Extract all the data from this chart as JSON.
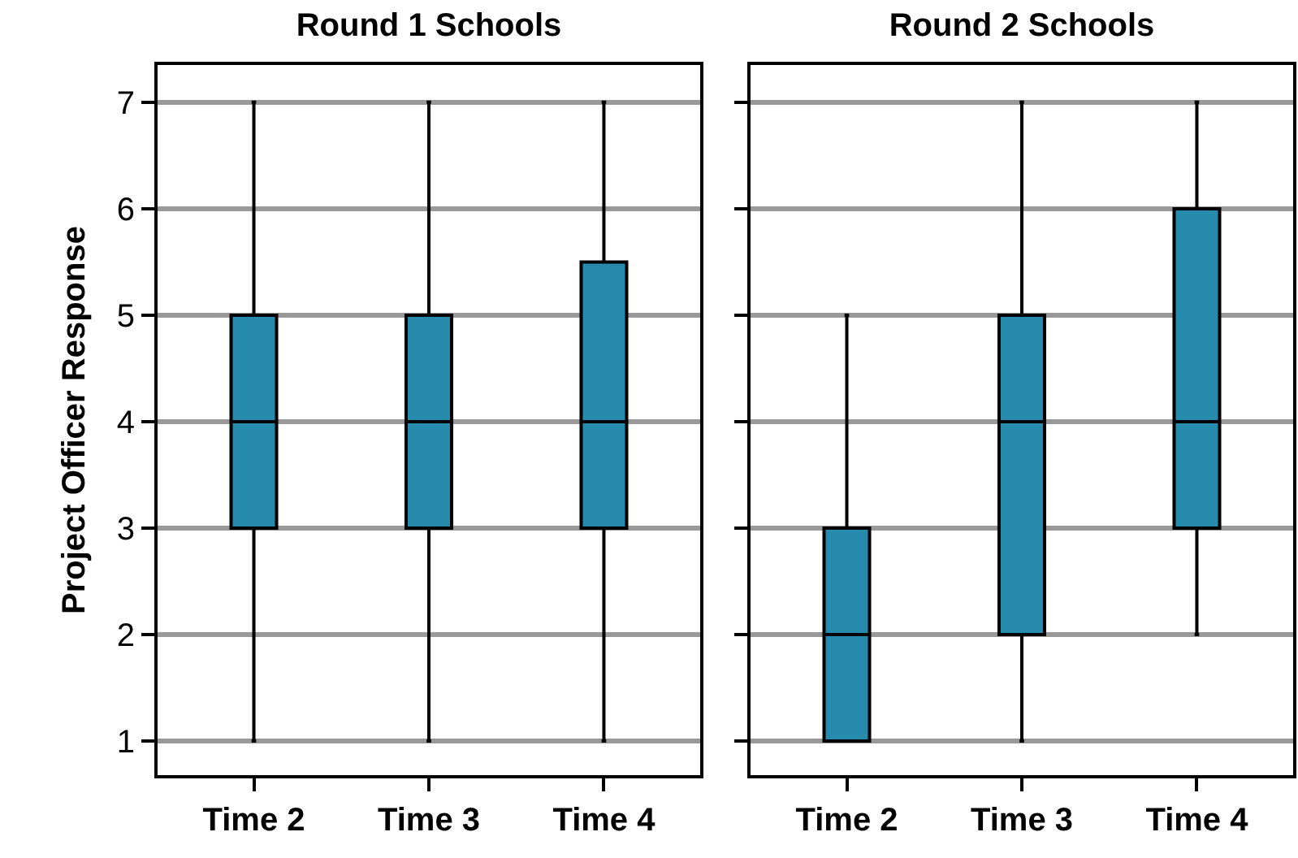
{
  "chart_data": [
    {
      "type": "box",
      "title": "Round 1 Schools",
      "ylabel": "Project Officer Response",
      "categories": [
        "Time 2",
        "Time 3",
        "Time 4"
      ],
      "color": "#268bad",
      "boxes": [
        {
          "low": 1,
          "q1": 3,
          "median": 4,
          "q3": 5,
          "high": 7
        },
        {
          "low": 1,
          "q1": 3,
          "median": 4,
          "q3": 5,
          "high": 7
        },
        {
          "low": 1,
          "q1": 3,
          "median": 4,
          "q3": 5.5,
          "high": 7
        }
      ],
      "ylim": [
        0.68,
        7.35
      ],
      "yticks": [
        1,
        2,
        3,
        4,
        5,
        6,
        7
      ],
      "grid": "y"
    },
    {
      "type": "box",
      "title": "Round 2 Schools",
      "categories": [
        "Time 2",
        "Time 3",
        "Time 4"
      ],
      "color": "#268bad",
      "boxes": [
        {
          "low": 1,
          "q1": 1,
          "median": 2,
          "q3": 3,
          "high": 5
        },
        {
          "low": 1,
          "q1": 2,
          "median": 4,
          "q3": 5,
          "high": 7
        },
        {
          "low": 2,
          "q1": 3,
          "median": 4,
          "q3": 6,
          "high": 7
        }
      ],
      "ylim": [
        0.68,
        7.35
      ],
      "yticks": [
        1,
        2,
        3,
        4,
        5,
        6,
        7
      ],
      "grid": "y",
      "tick_labels": "x"
    }
  ]
}
